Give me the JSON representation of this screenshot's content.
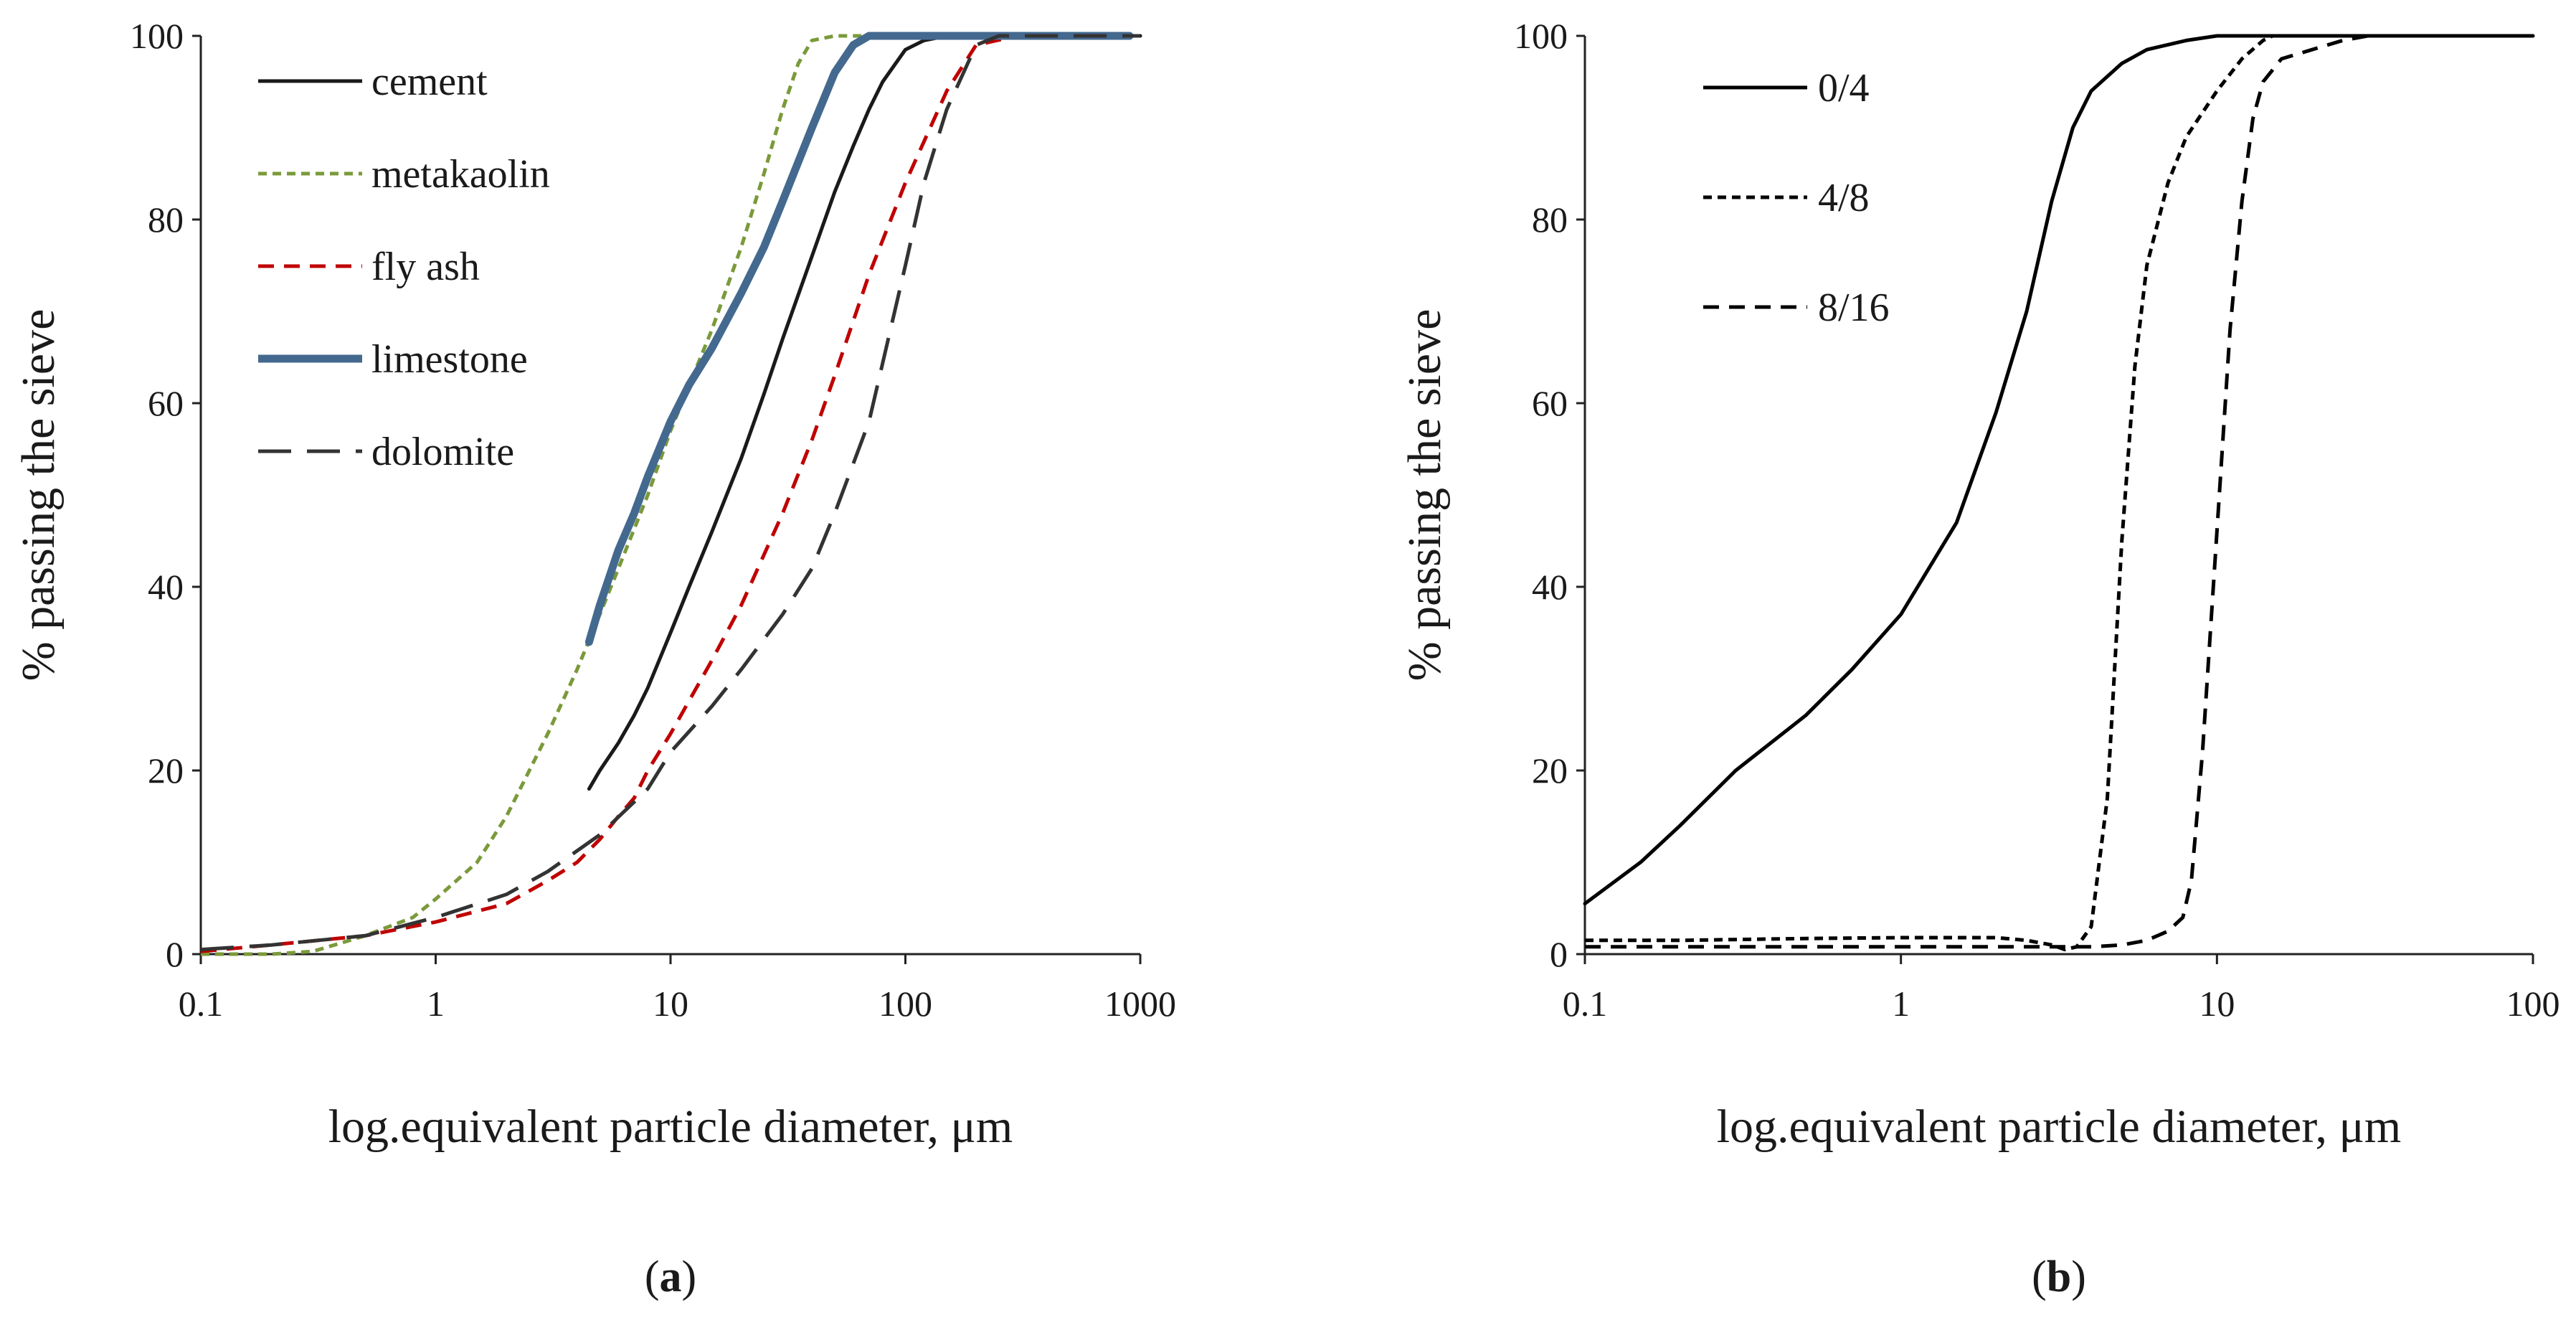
{
  "chart_data": [
    {
      "type": "line",
      "panel": "a",
      "caption": "(a)",
      "caption_letter": "a",
      "xscale": "log",
      "xlim": [
        0.1,
        1000
      ],
      "ylim": [
        0,
        100
      ],
      "xticks": [
        0.1,
        1,
        10,
        100,
        1000
      ],
      "xtick_labels": [
        "0.1",
        "1",
        "10",
        "100",
        "1000"
      ],
      "yticks": [
        0,
        20,
        40,
        60,
        80,
        100
      ],
      "ytick_labels": [
        "0",
        "20",
        "40",
        "60",
        "80",
        "100"
      ],
      "xlabel": "log.equivalent particle diameter, μm",
      "ylabel": "% passing the sieve",
      "legend_position": "top-left",
      "series": [
        {
          "name": "cement",
          "color": "#1a1a1a",
          "dash": "solid",
          "x": [
            4.5,
            5,
            6,
            7,
            8,
            10,
            12,
            15,
            20,
            25,
            30,
            40,
            50,
            60,
            70,
            80,
            100,
            120,
            150,
            200,
            300,
            500,
            1000
          ],
          "y": [
            18,
            20,
            23,
            26,
            29,
            35,
            40,
            46,
            54,
            61,
            67,
            76,
            83,
            88,
            92,
            95,
            98.5,
            99.5,
            100,
            100,
            100,
            100,
            100
          ]
        },
        {
          "name": "metakaolin",
          "color": "#7a9a3a",
          "dash": "short",
          "x": [
            0.1,
            0.2,
            0.3,
            0.5,
            0.8,
            1,
            1.5,
            2,
            3,
            4,
            5,
            6,
            8,
            10,
            15,
            20,
            25,
            30,
            35,
            40,
            50,
            100,
            1000
          ],
          "y": [
            0,
            0,
            0.3,
            2,
            4,
            6,
            10,
            15,
            24,
            31,
            37,
            42,
            50,
            57,
            68,
            77,
            85,
            92,
            97,
            99.5,
            100,
            100,
            100
          ]
        },
        {
          "name": "fly ash",
          "color": "#c00000",
          "dash": "medium",
          "x": [
            0.1,
            0.2,
            0.5,
            1,
            2,
            3,
            4,
            5,
            6,
            7,
            8,
            10,
            15,
            20,
            30,
            40,
            50,
            70,
            100,
            150,
            200,
            300,
            1000
          ],
          "y": [
            0.3,
            1,
            2,
            3.5,
            5.5,
            8,
            10,
            12.5,
            15,
            17,
            20,
            24,
            32,
            38,
            48,
            56,
            63,
            74,
            84,
            94,
            99,
            100,
            100
          ]
        },
        {
          "name": "limestone",
          "color": "#44698f",
          "dash": "solid",
          "thick": true,
          "x": [
            4.5,
            5,
            6,
            7,
            8,
            10,
            12,
            15,
            20,
            25,
            30,
            40,
            50,
            60,
            70,
            100,
            200,
            500,
            900
          ],
          "y": [
            34,
            38,
            44,
            48,
            52,
            58,
            62,
            66,
            72,
            77,
            82,
            90,
            96,
            99,
            100,
            100,
            100,
            100,
            100
          ]
        },
        {
          "name": "dolomite",
          "color": "#333333",
          "dash": "long",
          "x": [
            0.1,
            0.2,
            0.5,
            1,
            2,
            3,
            5,
            8,
            10,
            15,
            20,
            30,
            40,
            50,
            70,
            100,
            120,
            150,
            200,
            250,
            300,
            1000
          ],
          "y": [
            0.5,
            1,
            2,
            4,
            6.5,
            9,
            13,
            18,
            22,
            27,
            31,
            37,
            42,
            48,
            58,
            75,
            84,
            92,
            99,
            100,
            100,
            100
          ]
        }
      ]
    },
    {
      "type": "line",
      "panel": "b",
      "caption": "(b)",
      "caption_letter": "b",
      "xscale": "log",
      "xlim": [
        0.1,
        100
      ],
      "ylim": [
        0,
        100
      ],
      "xticks": [
        0.1,
        1,
        10,
        100
      ],
      "xtick_labels": [
        "0.1",
        "1",
        "10",
        "100"
      ],
      "yticks": [
        0,
        20,
        40,
        60,
        80,
        100
      ],
      "ytick_labels": [
        "0",
        "20",
        "40",
        "60",
        "80",
        "100"
      ],
      "xlabel": "log.equivalent particle diameter, μm",
      "ylabel": "% passing the sieve",
      "legend_position": "top-left",
      "series": [
        {
          "name": "0/4",
          "color": "#000000",
          "dash": "solid",
          "x": [
            0.1,
            0.15,
            0.2,
            0.3,
            0.5,
            0.7,
            1,
            1.5,
            2,
            2.5,
            3,
            3.5,
            4,
            5,
            6,
            8,
            10,
            12,
            100
          ],
          "y": [
            5.5,
            10,
            14,
            20,
            26,
            31,
            37,
            47,
            59,
            70,
            82,
            90,
            94,
            97,
            98.5,
            99.5,
            100,
            100,
            100
          ]
        },
        {
          "name": "4/8",
          "color": "#000000",
          "dash": "short",
          "x": [
            0.1,
            0.2,
            0.5,
            1,
            2,
            2.5,
            3,
            3.3,
            3.6,
            4,
            4.5,
            5,
            5.5,
            6,
            7,
            8,
            10,
            12,
            14,
            15,
            20,
            30
          ],
          "y": [
            1.5,
            1.5,
            1.7,
            1.8,
            1.8,
            1.5,
            1,
            0.5,
            0.8,
            3,
            17,
            45,
            64,
            75,
            84,
            89,
            94,
            97.5,
            99.5,
            100,
            100,
            100
          ]
        },
        {
          "name": "8/16",
          "color": "#000000",
          "dash": "medium",
          "x": [
            0.1,
            0.5,
            1,
            2,
            3,
            4,
            5,
            6,
            7,
            7.8,
            8.3,
            9,
            10,
            11,
            12,
            13,
            14,
            16,
            20,
            25,
            30,
            32
          ],
          "y": [
            0.8,
            0.8,
            0.8,
            0.8,
            0.8,
            0.8,
            1,
            1.5,
            2.5,
            4,
            8,
            22,
            46,
            68,
            82,
            91,
            95,
            97.5,
            98.5,
            99.5,
            100,
            100
          ]
        }
      ]
    }
  ]
}
